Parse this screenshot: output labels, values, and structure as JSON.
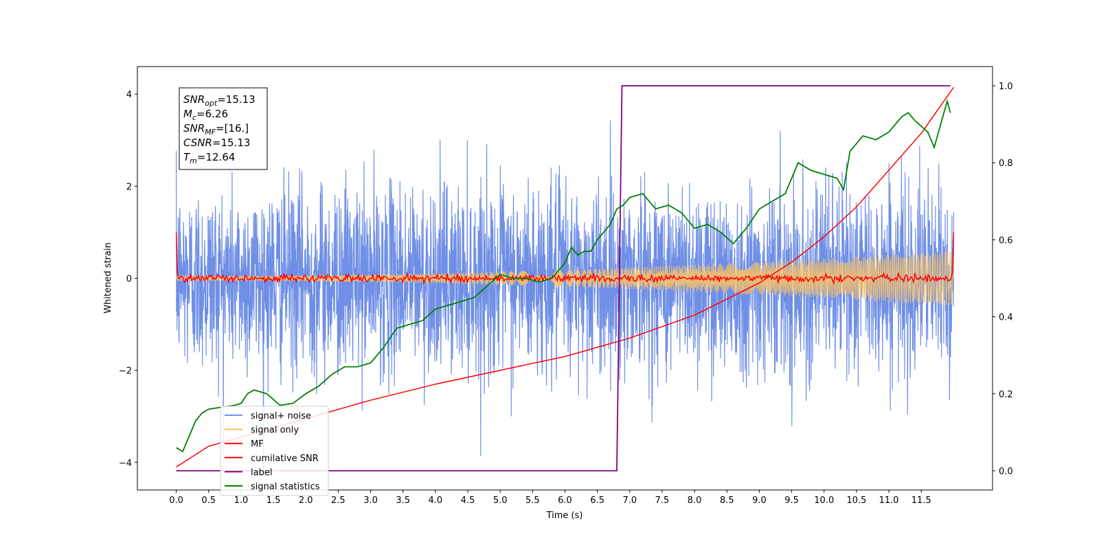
{
  "chart_data": {
    "type": "line",
    "xlabel": "Time (s)",
    "ylabel": "Whitened strain",
    "xlim": [
      -0.6,
      12.6
    ],
    "ylim": [
      -4.6,
      4.6
    ],
    "ylim_right": [
      -0.05,
      1.05
    ],
    "xticks": [
      "0.0",
      "0.5",
      "1.0",
      "1.5",
      "2.0",
      "2.5",
      "3.0",
      "3.5",
      "4.0",
      "4.5",
      "5.0",
      "5.5",
      "6.0",
      "6.5",
      "7.0",
      "7.5",
      "8.0",
      "8.5",
      "9.0",
      "9.5",
      "10.0",
      "10.5",
      "11.0",
      "11.5"
    ],
    "yticks_left": [
      "4",
      "2",
      "0",
      "−2",
      "−4"
    ],
    "yticks_right": [
      "1.0",
      "0.8",
      "0.6",
      "0.4",
      "0.2",
      "0.0"
    ],
    "grid": false,
    "legend_position": "lower-left",
    "series": [
      {
        "name": "signal+ noise",
        "color": "#6f8fe6",
        "axis": "left",
        "kind": "noise",
        "std": 1.0,
        "duration": 12.0
      },
      {
        "name": "signal only",
        "color": "#f4c06b",
        "axis": "left",
        "kind": "chirp",
        "amplitude_start": 0.05,
        "amplitude_end": 0.6
      },
      {
        "name": "MF",
        "color": "#ff0000",
        "axis": "left",
        "kind": "mf",
        "edge_value": 1.0,
        "baseline": 0.0
      },
      {
        "name": "cumilative SNR",
        "color": "#ff0000",
        "axis": "left",
        "x": [
          0.0,
          0.5,
          1.0,
          2.0,
          3.0,
          4.0,
          5.0,
          6.0,
          7.0,
          8.0,
          9.0,
          9.5,
          10.0,
          10.5,
          11.0,
          11.5,
          12.0
        ],
        "y": [
          -4.1,
          -3.65,
          -3.45,
          -3.05,
          -2.65,
          -2.3,
          -2.0,
          -1.7,
          -1.3,
          -0.8,
          -0.1,
          0.35,
          0.9,
          1.55,
          2.35,
          3.15,
          4.15
        ]
      },
      {
        "name": "label",
        "color": "#800080",
        "axis": "right",
        "x": [
          0.0,
          6.8,
          6.88,
          11.95
        ],
        "y": [
          0.0,
          0.0,
          1.0,
          1.0
        ]
      },
      {
        "name": "signal statistics",
        "color": "#008000",
        "axis": "right",
        "x": [
          0.0,
          0.1,
          0.2,
          0.3,
          0.4,
          0.5,
          0.7,
          0.9,
          1.0,
          1.1,
          1.2,
          1.4,
          1.6,
          1.8,
          2.0,
          2.2,
          2.4,
          2.6,
          2.8,
          3.0,
          3.2,
          3.4,
          3.6,
          3.8,
          4.0,
          4.2,
          4.4,
          4.6,
          4.8,
          5.0,
          5.2,
          5.4,
          5.6,
          5.8,
          6.0,
          6.1,
          6.2,
          6.3,
          6.4,
          6.5,
          6.6,
          6.7,
          6.8,
          6.9,
          7.0,
          7.2,
          7.4,
          7.6,
          7.8,
          8.0,
          8.2,
          8.4,
          8.6,
          8.8,
          9.0,
          9.2,
          9.4,
          9.6,
          9.8,
          10.0,
          10.2,
          10.3,
          10.4,
          10.6,
          10.8,
          11.0,
          11.2,
          11.3,
          11.4,
          11.6,
          11.7,
          11.8,
          11.9,
          11.95
        ],
        "y": [
          0.06,
          0.05,
          0.09,
          0.13,
          0.15,
          0.16,
          0.165,
          0.17,
          0.175,
          0.2,
          0.21,
          0.2,
          0.17,
          0.175,
          0.2,
          0.22,
          0.25,
          0.27,
          0.27,
          0.28,
          0.32,
          0.37,
          0.38,
          0.39,
          0.42,
          0.43,
          0.44,
          0.45,
          0.48,
          0.51,
          0.5,
          0.5,
          0.49,
          0.5,
          0.54,
          0.58,
          0.56,
          0.57,
          0.57,
          0.6,
          0.62,
          0.64,
          0.68,
          0.69,
          0.71,
          0.72,
          0.68,
          0.69,
          0.67,
          0.63,
          0.64,
          0.62,
          0.59,
          0.63,
          0.68,
          0.7,
          0.72,
          0.8,
          0.78,
          0.77,
          0.76,
          0.73,
          0.83,
          0.87,
          0.86,
          0.88,
          0.92,
          0.93,
          0.91,
          0.88,
          0.84,
          0.9,
          0.96,
          0.93
        ]
      }
    ],
    "stats_box": [
      {
        "base": "SNR",
        "sub": "opt",
        "value": "=15.13"
      },
      {
        "base": "M",
        "sub": "c",
        "value": "=6.26"
      },
      {
        "base": "SNR",
        "sub": "MF",
        "value": "=[16.]"
      },
      {
        "base": "CSNR",
        "sub": "",
        "value": "=15.13"
      },
      {
        "base": "T",
        "sub": "m",
        "value": "=12.64"
      }
    ]
  }
}
